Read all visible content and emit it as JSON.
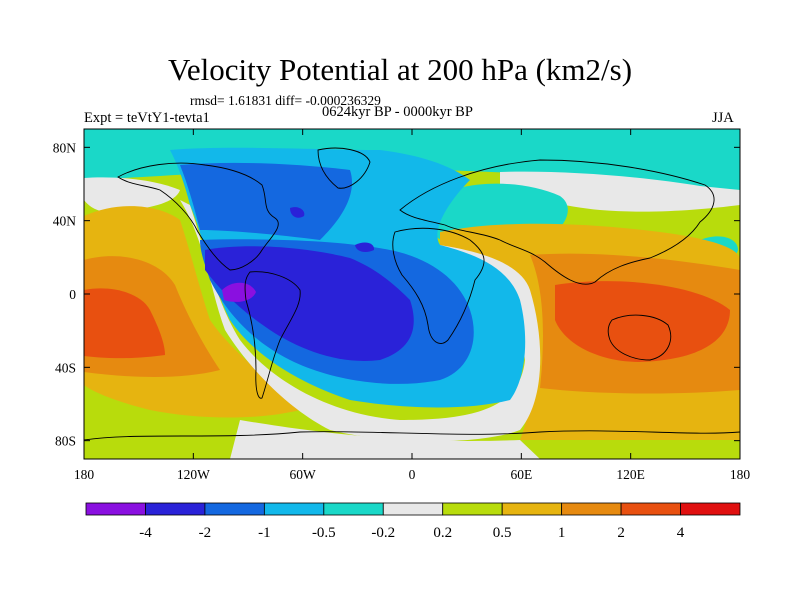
{
  "title": "Velocity Potential at 200 hPa (km2/s)",
  "stats": "rmsd= 1.61831 diff= -0.000236329",
  "experiment": "Expt = teVtY1-tevta1",
  "period": "0624kyr BP - 0000kyr BP",
  "season": "JJA",
  "map": {
    "projection": "cylindrical-equidistant",
    "lon_range": [
      -180,
      180
    ],
    "lat_range": [
      -90,
      90
    ],
    "x_ticks": [
      {
        "value": -180,
        "label": "180"
      },
      {
        "value": -120,
        "label": "120W"
      },
      {
        "value": -60,
        "label": "60W"
      },
      {
        "value": 0,
        "label": "0"
      },
      {
        "value": 60,
        "label": "60E"
      },
      {
        "value": 120,
        "label": "120E"
      },
      {
        "value": 180,
        "label": "180"
      }
    ],
    "y_ticks": [
      {
        "value": 80,
        "label": "80N"
      },
      {
        "value": 40,
        "label": "40N"
      },
      {
        "value": 0,
        "label": "0"
      },
      {
        "value": -40,
        "label": "40S"
      },
      {
        "value": -80,
        "label": "80S"
      }
    ]
  },
  "colorbar": {
    "colors": [
      "#8a10e0",
      "#2a22d8",
      "#1468e0",
      "#12b8ea",
      "#1ad8c8",
      "#e8e8e8",
      "#b8dc0c",
      "#e6b410",
      "#e68a10",
      "#e85010",
      "#e01010"
    ],
    "labels": [
      "-4",
      "-2",
      "-1",
      "-0.5",
      "-0.2",
      "0.2",
      "0.5",
      "1",
      "2",
      "4"
    ]
  }
}
